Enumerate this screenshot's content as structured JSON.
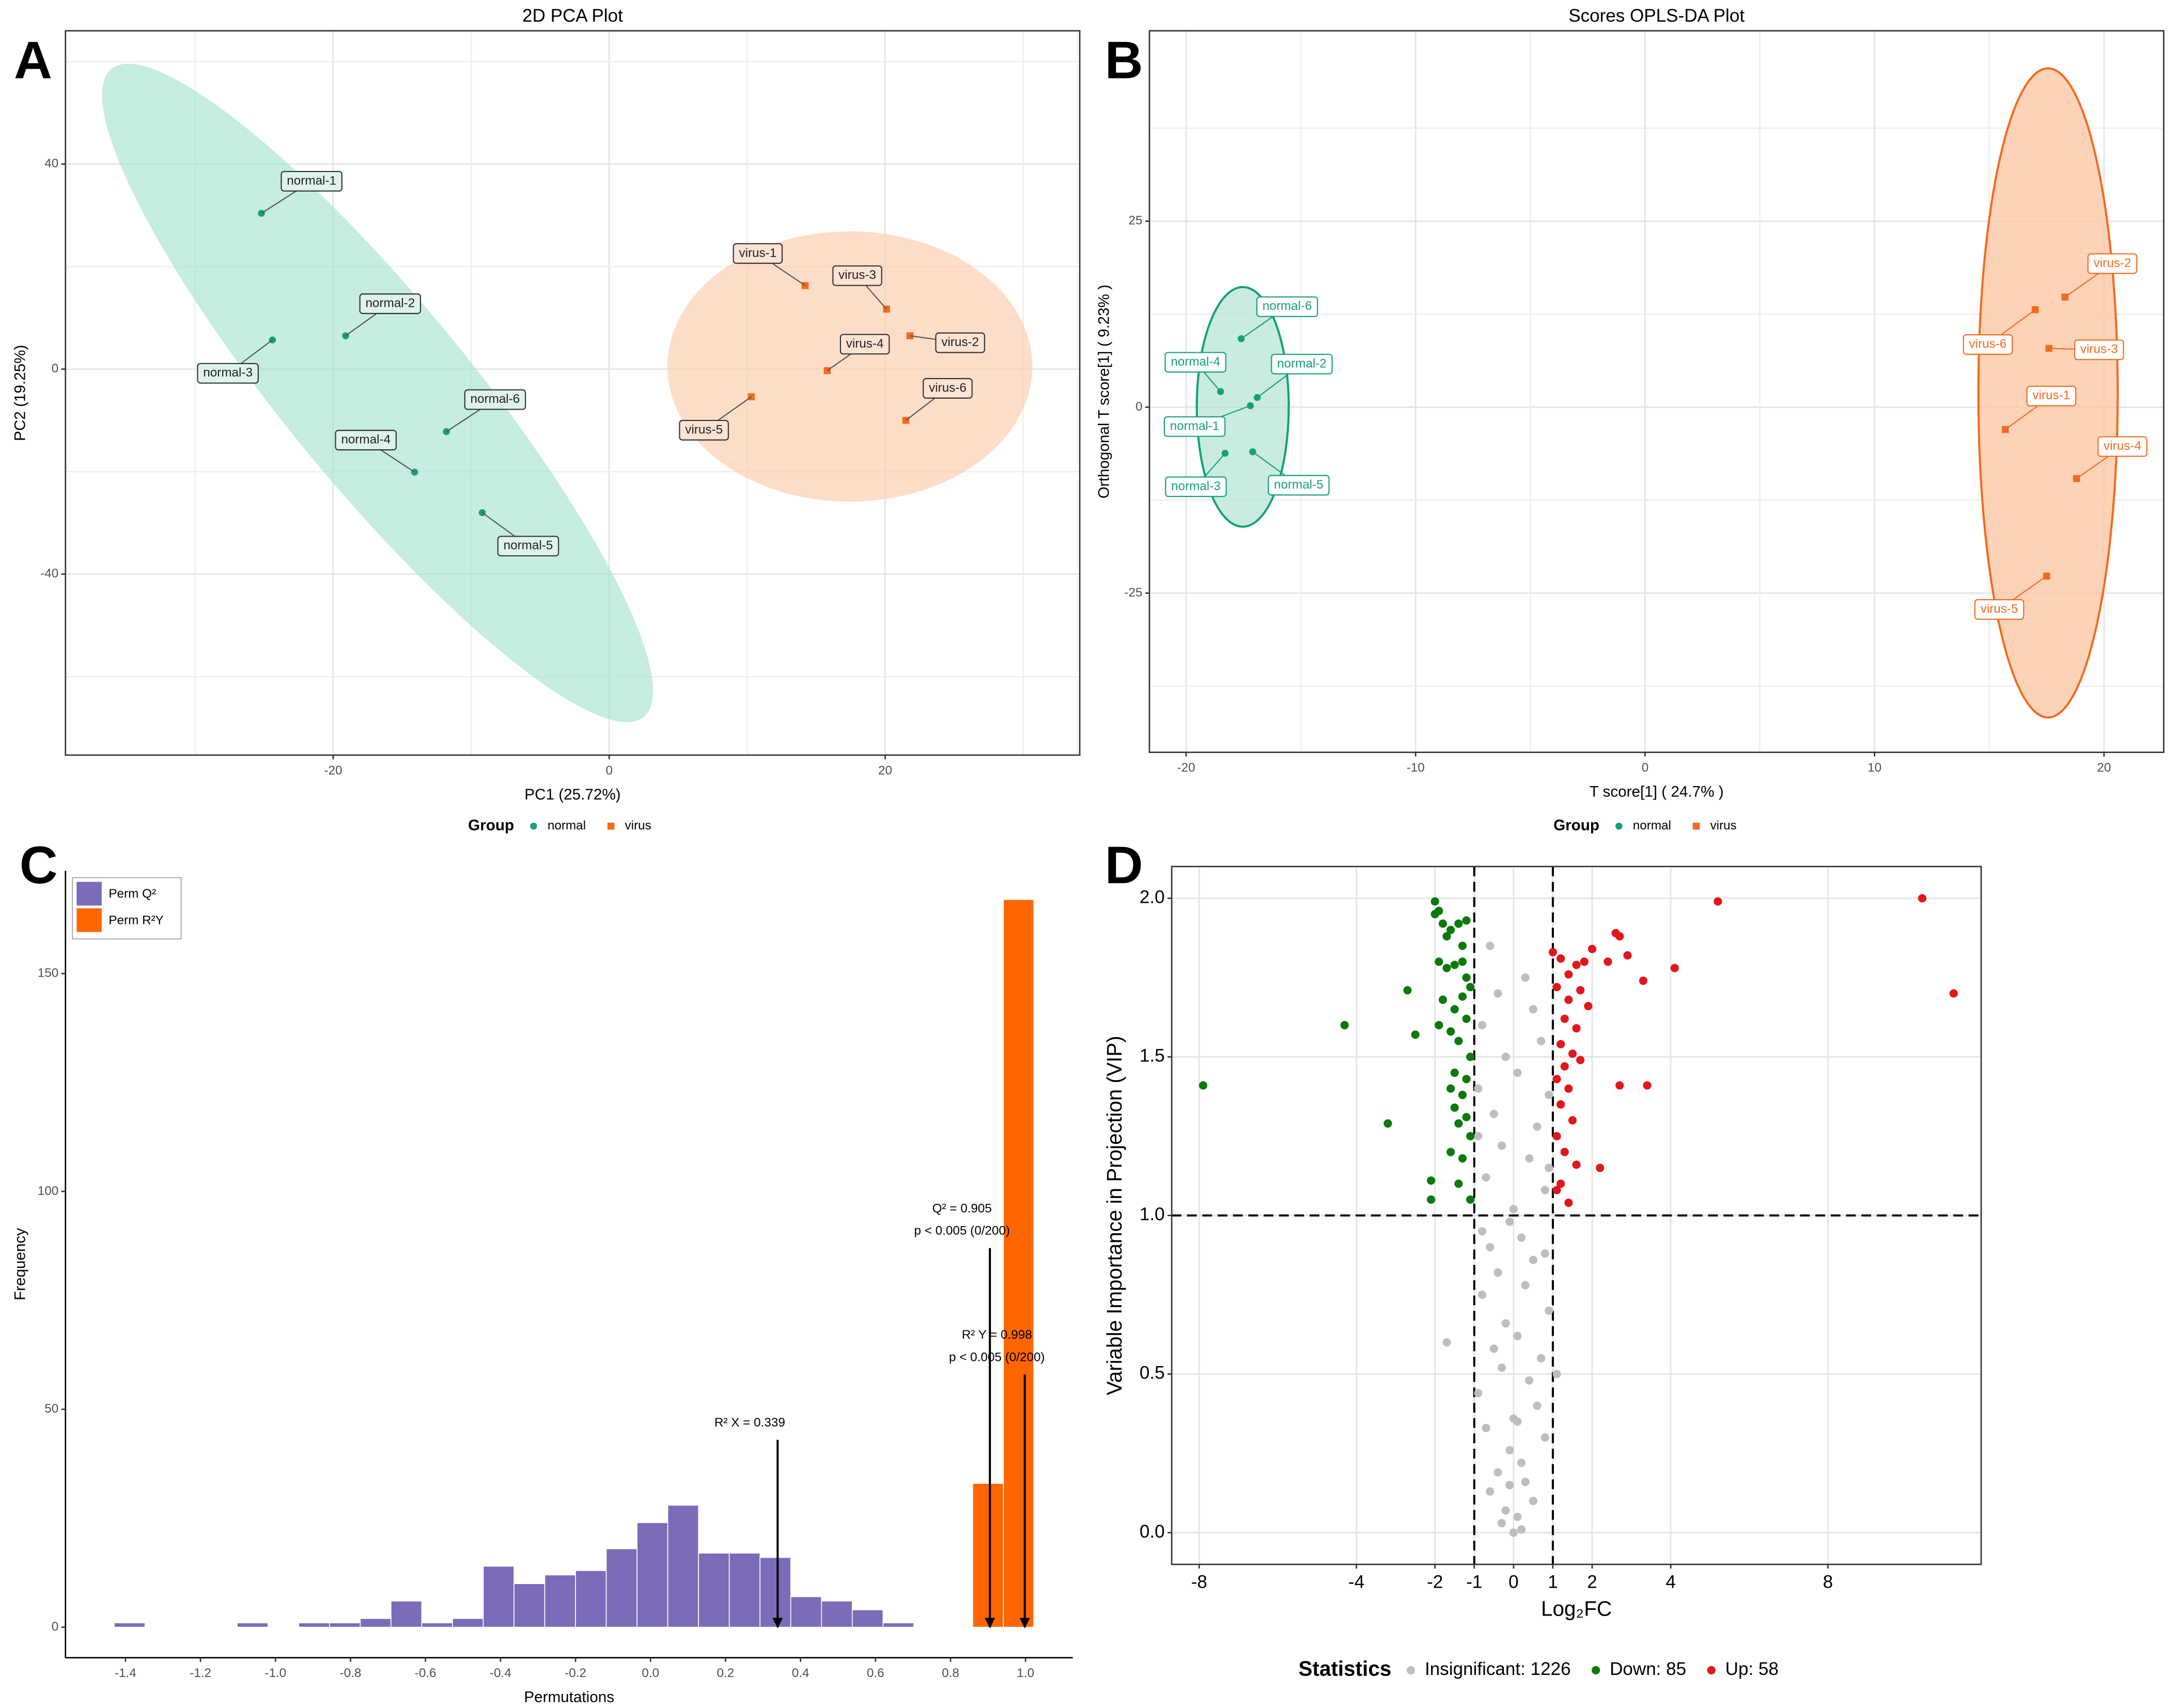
{
  "chart_data": [
    {
      "type": "scatter",
      "panel": "A",
      "title": "2D PCA Plot",
      "xlabel": "PC1 (25.72%)",
      "ylabel": "PC2 (19.25%)",
      "legend_title": "Group",
      "xlim": [
        -39.4,
        34.1
      ],
      "ylim": [
        -75.3,
        66
      ],
      "xticks": [
        -20,
        0,
        20
      ],
      "yticks": [
        -40,
        0,
        40
      ],
      "grid": true,
      "series": [
        {
          "name": "normal",
          "color": "#15a07a",
          "shape": "circle",
          "labels": [
            "normal-1",
            "normal-2",
            "normal-3",
            "normal-4",
            "normal-5",
            "normal-6"
          ],
          "x": [
            -25.2,
            -19.1,
            -24.4,
            -14.1,
            -9.2,
            -11.8
          ],
          "values": [
            30.4,
            6.5,
            5.7,
            -20.1,
            -28,
            -12.2
          ]
        },
        {
          "name": "virus",
          "color": "#f26b1d",
          "shape": "square",
          "labels": [
            "virus-1",
            "virus-2",
            "virus-3",
            "virus-4",
            "virus-5",
            "virus-6"
          ],
          "x": [
            14.2,
            21.8,
            20.1,
            15.8,
            10.3,
            21.5
          ],
          "values": [
            16.3,
            6.5,
            11.7,
            -0.3,
            -5.4,
            -10
          ]
        }
      ]
    },
    {
      "type": "scatter",
      "panel": "B",
      "title": "Scores OPLS-DA Plot",
      "xlabel": "T score[1] ( 24.7% )",
      "ylabel": "Orthogonal T score[1] ( 9.23% )",
      "legend_title": "Group",
      "xlim": [
        -21.6,
        22.6
      ],
      "ylim": [
        -46.4,
        50.6
      ],
      "xticks": [
        -20,
        -10,
        0,
        10,
        20
      ],
      "yticks": [
        -25,
        0,
        25
      ],
      "grid": true,
      "series": [
        {
          "name": "normal",
          "color": "#15a07a",
          "shape": "circle",
          "labels": [
            "normal-1",
            "normal-2",
            "normal-3",
            "normal-4",
            "normal-5",
            "normal-6"
          ],
          "x": [
            -17.2,
            -16.9,
            -18.3,
            -18.5,
            -17.1,
            -17.6
          ],
          "values": [
            0.2,
            1.3,
            -6.2,
            2.1,
            -6,
            9.2
          ]
        },
        {
          "name": "virus",
          "color": "#f26b1d",
          "shape": "square",
          "labels": [
            "virus-1",
            "virus-2",
            "virus-3",
            "virus-4",
            "virus-5",
            "virus-6"
          ],
          "x": [
            15.7,
            18.3,
            17.6,
            18.8,
            17.5,
            17.0
          ],
          "values": [
            -3.0,
            14.8,
            7.9,
            -9.6,
            -22.7,
            13.1
          ]
        }
      ]
    },
    {
      "type": "histogram",
      "panel": "C",
      "xlabel": "Permutations",
      "ylabel": "Frequency",
      "xlim": [
        -1.56,
        1.126
      ],
      "ylim": [
        -7,
        173.6
      ],
      "grid": false,
      "xticks": [
        -1.4,
        -1.2,
        {
          "value": -1,
          "label": "-1.0"
        },
        -0.8,
        -0.6,
        -0.4,
        -0.2,
        {
          "value": 0,
          "label": "0.0"
        },
        0.2,
        0.4,
        0.6,
        0.8,
        {
          "value": 1,
          "label": "1.0"
        }
      ],
      "yticks": [
        0,
        50,
        100,
        150
      ],
      "series": [
        {
          "name": "Perm Q²",
          "color": "#7b6bb8",
          "bins": [
            -1.43,
            -1.348,
            -1.266,
            -1.184,
            -1.102,
            -1.02,
            -0.938,
            -0.856,
            -0.774,
            -0.692,
            -0.61,
            -0.528,
            -0.446,
            -0.364,
            -0.282,
            -0.2,
            -0.118,
            -0.036,
            0.046,
            0.128,
            0.21,
            0.292,
            0.374,
            0.456,
            0.538,
            0.62,
            0.702
          ],
          "values": [
            1,
            0,
            0,
            0,
            1,
            0,
            1,
            1,
            2,
            6,
            1,
            2,
            14,
            10,
            12,
            13,
            18,
            24,
            28,
            17,
            17,
            16,
            7,
            6,
            4,
            1
          ]
        },
        {
          "name": "Perm R²Y",
          "color": "#ff6600",
          "bins": [
            0.859,
            0.941,
            1.022
          ],
          "values": [
            33,
            167
          ]
        }
      ],
      "annotations": [
        {
          "lines": [
            "R² X = 0.339"
          ],
          "x": 0.339,
          "y": 43
        },
        {
          "lines": [
            "Q² = 0.905",
            "p < 0.005 (0/200)"
          ],
          "x": 0.905,
          "y": 87
        },
        {
          "lines": [
            "R² Y = 0.998",
            "p < 0.005 (0/200)"
          ],
          "x": 0.998,
          "y": 58
        }
      ]
    },
    {
      "type": "scatter",
      "panel": "D",
      "xlabel": "Log₂FC",
      "ylabel": "Variable Importance in Projection (VIP)",
      "legend_title": "Statistics",
      "xlim": [
        -8.7,
        11.9
      ],
      "ylim": [
        -0.1,
        2.1
      ],
      "xticks": [
        -8,
        -4,
        -2,
        -1,
        0,
        1,
        2,
        4,
        8
      ],
      "yticks": [
        {
          "value": 0,
          "label": "0.0"
        },
        0.5,
        {
          "value": 1,
          "label": "1.0"
        },
        1.5,
        {
          "value": 2,
          "label": "2.0"
        }
      ],
      "grid": true,
      "threshold_lines": {
        "x": [
          -1,
          1
        ],
        "y": [
          1
        ]
      },
      "series": [
        {
          "name": "Insignificant: 1226",
          "color": "#bebebe",
          "shape": "circle",
          "x": [
            -0.6,
            0.3,
            -0.4,
            0.5,
            -0.8,
            0.7,
            -0.2,
            0.1,
            -0.9,
            0.9,
            -0.5,
            0.6,
            -0.3,
            0.4,
            -0.7,
            0.8,
            0.0,
            -0.1,
            0.2,
            -0.6,
            0.5,
            -0.4,
            0.3,
            -0.8,
            0.9,
            -0.2,
            0.1,
            -0.5,
            0.7,
            -0.3,
            0.4,
            -0.9,
            0.6,
            0.0,
            -0.7,
            0.8,
            -0.1,
            0.2,
            -0.4,
            0.3,
            -0.6,
            0.5,
            -0.2,
            0.1,
            -0.3,
            0.2,
            0.0,
            -0.1,
            0.1,
            -1.7,
            1.1,
            -0.9,
            0.9,
            -0.8,
            0.8
          ],
          "values": [
            1.85,
            1.75,
            1.7,
            1.65,
            1.6,
            1.55,
            1.5,
            1.45,
            1.4,
            1.38,
            1.32,
            1.28,
            1.22,
            1.18,
            1.12,
            1.08,
            1.02,
            0.98,
            0.93,
            0.9,
            0.86,
            0.82,
            0.78,
            0.75,
            0.7,
            0.66,
            0.62,
            0.58,
            0.55,
            0.52,
            0.48,
            0.44,
            0.4,
            0.36,
            0.33,
            0.3,
            0.26,
            0.22,
            0.19,
            0.16,
            0.13,
            0.1,
            0.07,
            0.05,
            0.03,
            0.01,
            0.0,
            0.15,
            0.35,
            0.6,
            0.5,
            1.25,
            1.15,
            0.95,
            0.88
          ]
        },
        {
          "name": "Down: 85",
          "color": "#0b7a0b",
          "shape": "circle",
          "x": [
            -7.9,
            -4.3,
            -3.2,
            -2.7,
            -2.5,
            -2.0,
            -2.1,
            -2.1,
            -1.9,
            -1.8,
            -1.6,
            -1.4,
            -1.3,
            -1.2,
            -1.9,
            -1.7,
            -1.5,
            -1.3,
            -1.2,
            -1.8,
            -1.5,
            -1.3,
            -1.1,
            -1.9,
            -1.6,
            -1.2,
            -1.4,
            -1.1,
            -1.5,
            -1.2,
            -1.6,
            -1.3,
            -1.5,
            -1.2,
            -1.4,
            -1.1,
            -1.6,
            -1.3,
            -1.4,
            -1.1,
            -2.0,
            -1.7
          ],
          "values": [
            1.41,
            1.6,
            1.29,
            1.71,
            1.57,
            1.99,
            1.05,
            1.11,
            1.96,
            1.92,
            1.9,
            1.92,
            1.85,
            1.93,
            1.8,
            1.78,
            1.79,
            1.8,
            1.75,
            1.68,
            1.65,
            1.69,
            1.72,
            1.6,
            1.58,
            1.62,
            1.55,
            1.5,
            1.45,
            1.43,
            1.4,
            1.38,
            1.34,
            1.31,
            1.29,
            1.25,
            1.2,
            1.18,
            1.1,
            1.05,
            1.95,
            1.88
          ]
        },
        {
          "name": "Up: 58",
          "color": "#e3161c",
          "shape": "circle",
          "x": [
            10.4,
            11.2,
            5.2,
            4.1,
            3.3,
            3.4,
            2.7,
            2.2,
            2.6,
            2.7,
            2.9,
            2.4,
            2.0,
            1.8,
            1.6,
            1.4,
            1.2,
            1.0,
            1.1,
            1.4,
            1.7,
            1.9,
            1.3,
            1.6,
            1.2,
            1.5,
            1.3,
            1.7,
            1.1,
            1.4,
            1.2,
            1.5,
            1.1,
            1.3,
            1.6,
            1.2,
            1.4,
            1.1
          ],
          "values": [
            2.0,
            1.7,
            1.99,
            1.78,
            1.74,
            1.41,
            1.41,
            1.15,
            1.89,
            1.88,
            1.82,
            1.8,
            1.84,
            1.8,
            1.79,
            1.76,
            1.81,
            1.83,
            1.72,
            1.68,
            1.71,
            1.66,
            1.62,
            1.59,
            1.54,
            1.51,
            1.47,
            1.49,
            1.43,
            1.4,
            1.35,
            1.3,
            1.25,
            1.2,
            1.16,
            1.1,
            1.04,
            1.08
          ]
        }
      ]
    }
  ]
}
